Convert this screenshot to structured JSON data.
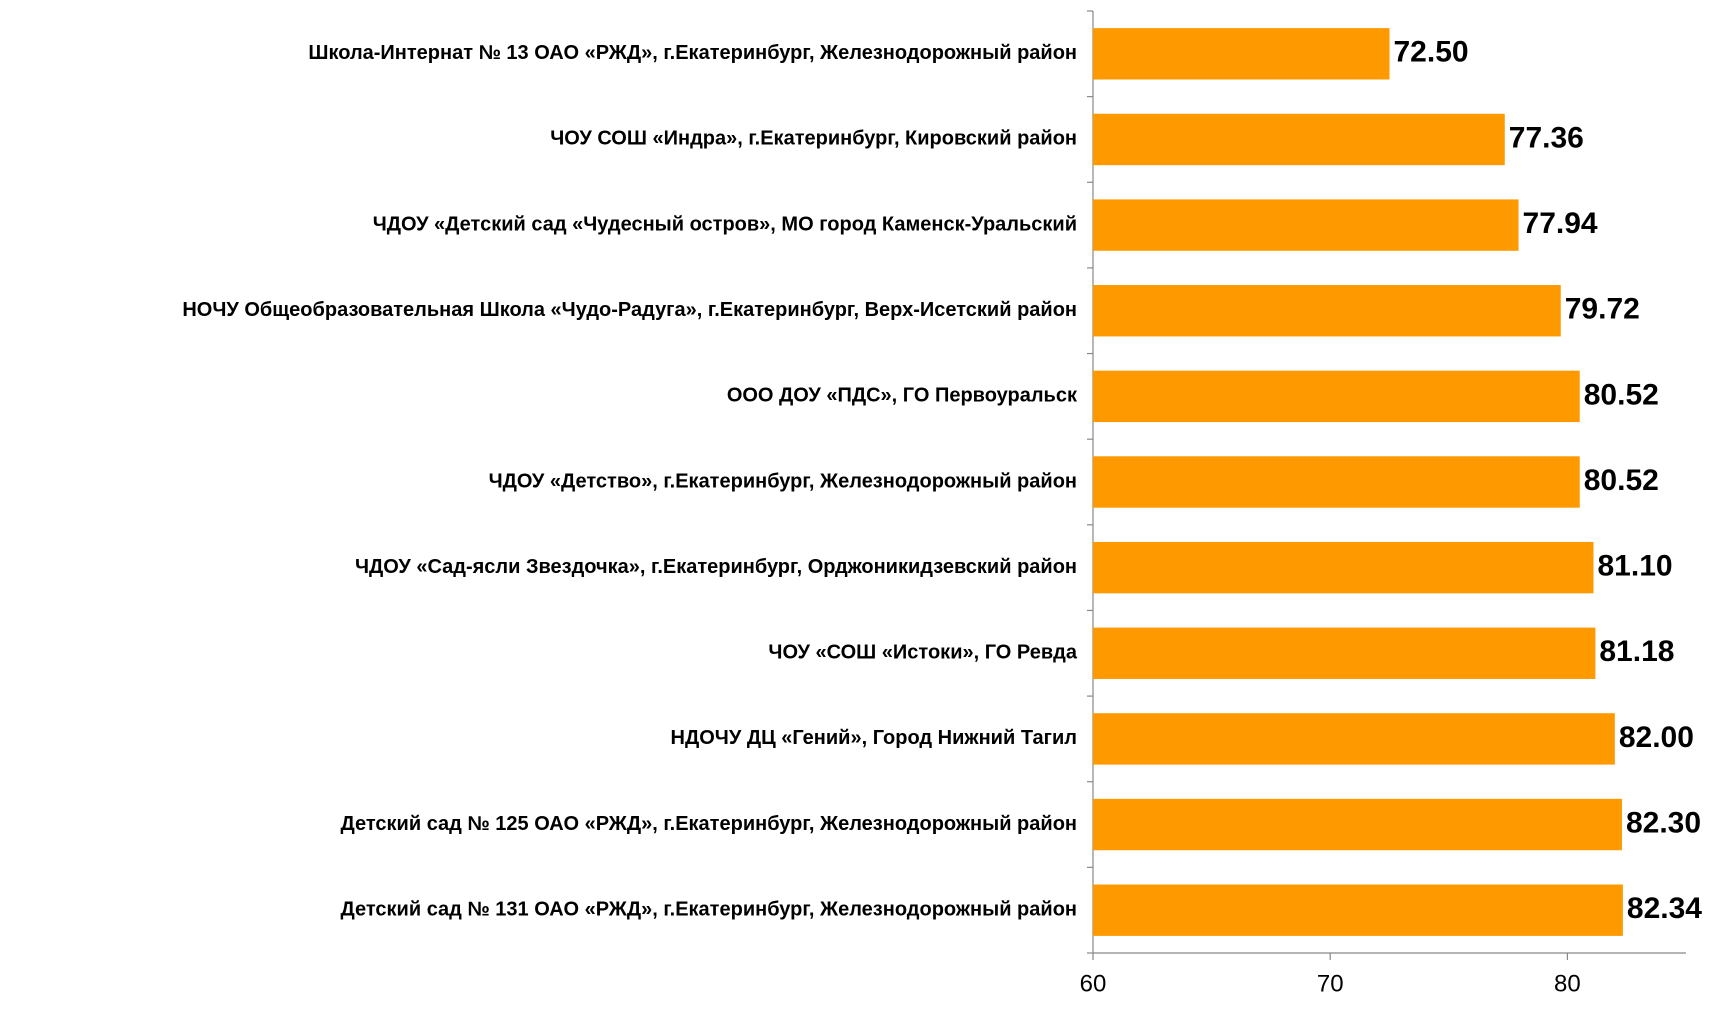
{
  "chart_data": {
    "type": "bar",
    "orientation": "horizontal",
    "categories": [
      "Школа-Интернат № 13 ОАО «РЖД», г.Екатеринбург, Железнодорожный район",
      "ЧОУ СОШ «Индра», г.Екатеринбург, Кировский  район",
      "ЧДОУ «Детский сад «Чудесный остров», МО город Каменск-Уральский",
      "НОЧУ Общеобразовательная Школа «Чудо-Радуга», г.Екатеринбург, Верх-Исетский район",
      "ООО ДОУ «ПДС», ГО Первоуральск",
      "ЧДОУ «Детство», г.Екатеринбург, Железнодорожный район",
      "ЧДОУ «Сад-ясли Звездочка», г.Екатеринбург, Орджоникидзевский  район",
      "ЧОУ «СОШ «Истоки», ГО Ревда",
      "НДОЧУ ДЦ «Гений», Город Нижний Тагил",
      "Детский сад № 125 ОАО «РЖД», г.Екатеринбург, Железнодорожный район",
      "Детский сад № 131 ОАО «РЖД», г.Екатеринбург, Железнодорожный район"
    ],
    "values": [
      72.5,
      77.36,
      77.94,
      79.72,
      80.52,
      80.52,
      81.1,
      81.18,
      82.0,
      82.3,
      82.34
    ],
    "value_labels": [
      "72.50",
      "77.36",
      "77.94",
      "79.72",
      "80.52",
      "80.52",
      "81.10",
      "81.18",
      "82.00",
      "82.30",
      "82.34"
    ],
    "color": "#ff9900",
    "xlim": [
      60,
      85
    ],
    "xticks": [
      60,
      70,
      80
    ]
  }
}
